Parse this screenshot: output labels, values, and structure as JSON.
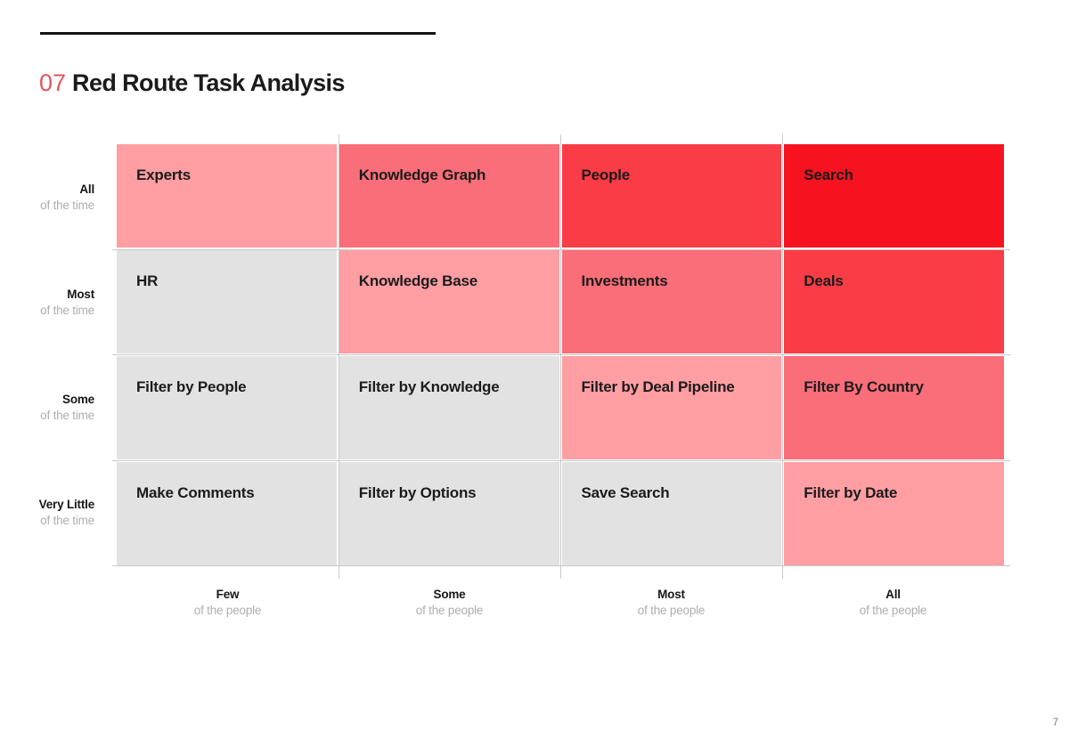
{
  "header": {
    "index": "07",
    "title": "Red Route Task Analysis",
    "index_color": "#E25562"
  },
  "chart_data": {
    "type": "heatmap",
    "title": "Red Route Task Analysis",
    "x_categories": [
      "Few of the people",
      "Some of the people",
      "Most of the people",
      "All of the people"
    ],
    "y_categories": [
      "All of the time",
      "Most of the time",
      "Some of the time",
      "Very Little of the time"
    ],
    "cell_labels": [
      [
        "Experts",
        "Knowledge Graph",
        "People",
        "Search"
      ],
      [
        "HR",
        "Knowledge Base",
        "Investments",
        "Deals"
      ],
      [
        "Filter by People",
        "Filter by Knowledge",
        "Filter by Deal Pipeline",
        "Filter By Country"
      ],
      [
        "Make Comments",
        "Filter by Options",
        "Save Search",
        "Filter by Date"
      ]
    ],
    "cell_intensity": [
      [
        1,
        2,
        3,
        4
      ],
      [
        0,
        1,
        2,
        3
      ],
      [
        0,
        0,
        1,
        2
      ],
      [
        0,
        0,
        0,
        1
      ]
    ],
    "intensity_scale": [
      "#E2E2E2",
      "#FF9EA3",
      "#F96E78",
      "#F93C46",
      "#F6121F"
    ],
    "grid_line_color": "#C9C9C9",
    "legend": "none"
  },
  "axes": {
    "y": [
      {
        "primary": "All",
        "secondary": "of the time"
      },
      {
        "primary": "Most",
        "secondary": "of the time"
      },
      {
        "primary": "Some",
        "secondary": "of the time"
      },
      {
        "primary": "Very Little",
        "secondary": "of the time"
      }
    ],
    "x": [
      {
        "primary": "Few",
        "secondary": "of the people"
      },
      {
        "primary": "Some",
        "secondary": "of the people"
      },
      {
        "primary": "Most",
        "secondary": "of the people"
      },
      {
        "primary": "All",
        "secondary": "of the people"
      }
    ]
  },
  "footer": {
    "page_number": "7"
  }
}
